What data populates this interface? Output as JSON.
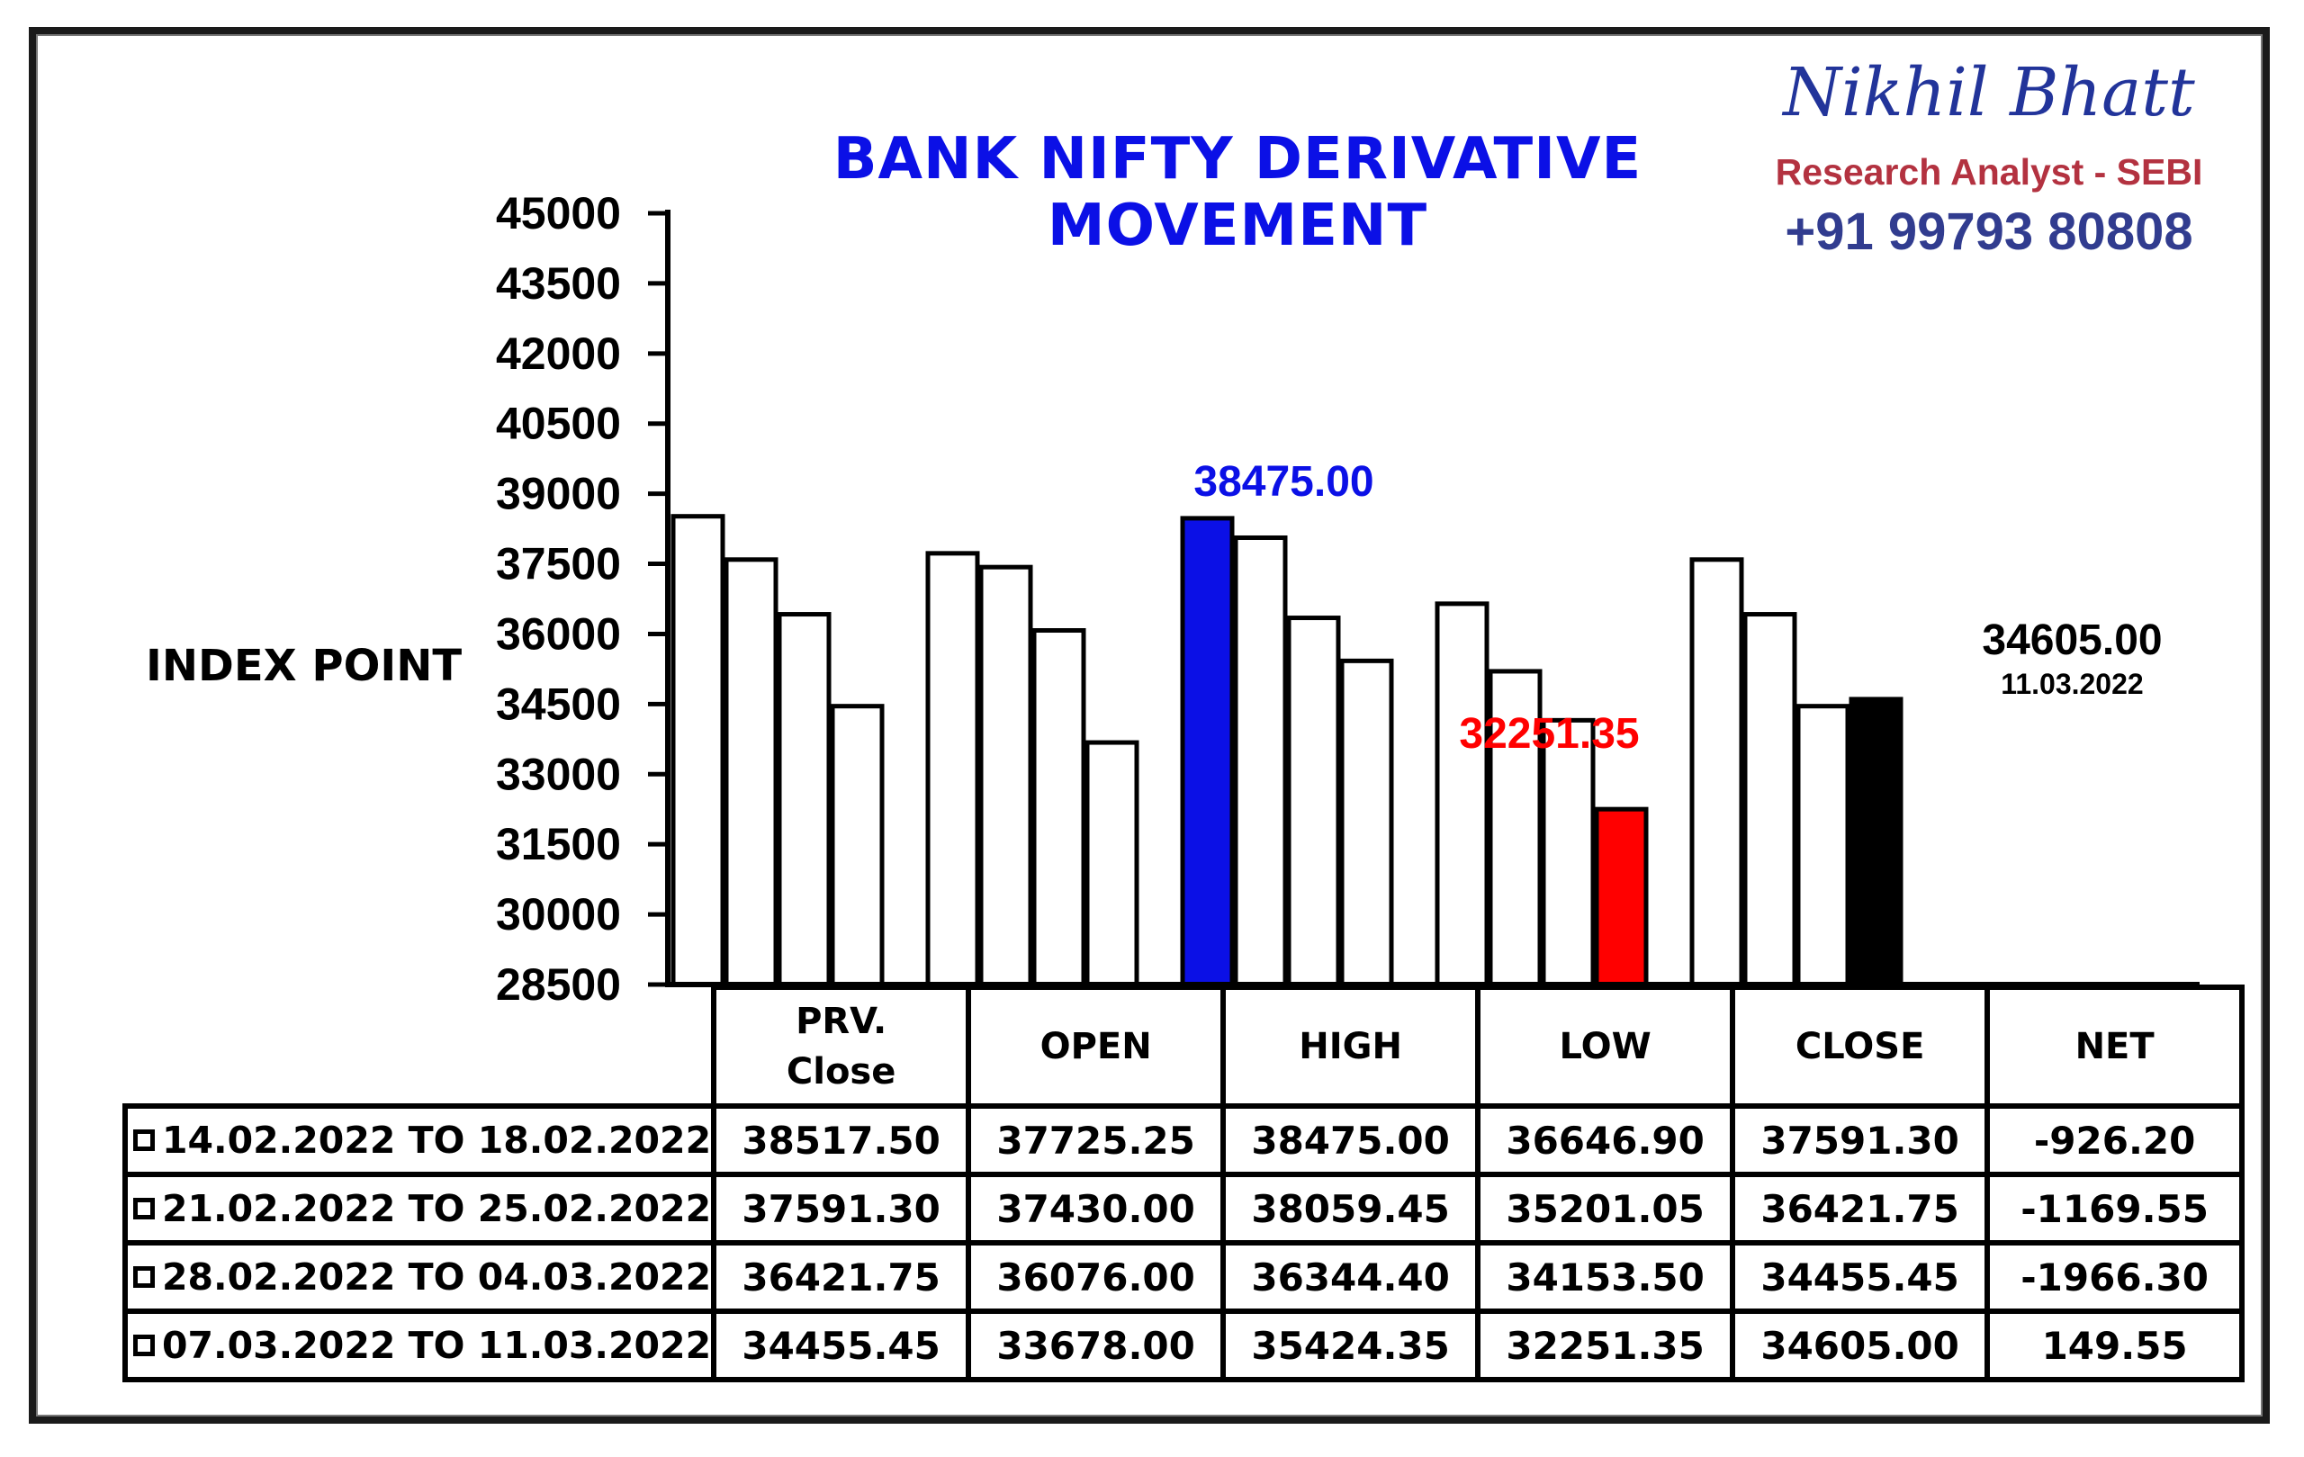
{
  "header": {
    "brand_name": "Nikhil Bhatt",
    "brand_role": "Research Analyst - SEBI",
    "brand_phone": "+91 99793 80808"
  },
  "chart_data": {
    "type": "bar",
    "title": "BANK NIFTY DERIVATIVE MOVEMENT",
    "ylabel": "INDEX POINT",
    "xlabel": "",
    "ylim": [
      28500,
      45000
    ],
    "yticks": [
      45000,
      43500,
      42000,
      40500,
      39000,
      37500,
      36000,
      34500,
      33000,
      31500,
      30000,
      28500
    ],
    "grid": false,
    "categories": [
      "PRV.\nClose",
      "OPEN",
      "HIGH",
      "LOW",
      "CLOSE"
    ],
    "series": [
      {
        "name": "14.02.2022 TO 18.02.2022",
        "values": [
          38517.5,
          37725.25,
          38475.0,
          36646.9,
          37591.3
        ]
      },
      {
        "name": "21.02.2022 TO 25.02.2022",
        "values": [
          37591.3,
          37430.0,
          38059.45,
          35201.05,
          36421.75
        ]
      },
      {
        "name": "28.02.2022 TO 04.03.2022",
        "values": [
          36421.75,
          36076.0,
          36344.4,
          34153.5,
          34455.45
        ]
      },
      {
        "name": "07.03.2022 TO 11.03.2022",
        "values": [
          34455.45,
          33678.0,
          35424.35,
          32251.35,
          34605.0
        ]
      }
    ],
    "highlights": [
      {
        "category": 2,
        "series": 0,
        "color": "#0b10e6",
        "label": "38475.00"
      },
      {
        "category": 3,
        "series": 3,
        "color": "#ff0000",
        "label": "32251.35"
      },
      {
        "category": 4,
        "series": 3,
        "color": "#000000",
        "label": "34605.00",
        "sublabel": "11.03.2022"
      }
    ],
    "table": {
      "columns": [
        "PRV.\nClose",
        "OPEN",
        "HIGH",
        "LOW",
        "CLOSE",
        "NET"
      ],
      "rows": [
        {
          "period": "14.02.2022 TO 18.02.2022",
          "values": [
            "38517.50",
            "37725.25",
            "38475.00",
            "36646.90",
            "37591.30",
            "-926.20"
          ]
        },
        {
          "period": "21.02.2022 TO 25.02.2022",
          "values": [
            "37591.30",
            "37430.00",
            "38059.45",
            "35201.05",
            "36421.75",
            "-1169.55"
          ]
        },
        {
          "period": "28.02.2022 TO 04.03.2022",
          "values": [
            "36421.75",
            "36076.00",
            "36344.40",
            "34153.50",
            "34455.45",
            "-1966.30"
          ]
        },
        {
          "period": "07.03.2022 TO 11.03.2022",
          "values": [
            "34455.45",
            "33678.00",
            "35424.35",
            "32251.35",
            "34605.00",
            "149.55"
          ]
        }
      ]
    }
  }
}
